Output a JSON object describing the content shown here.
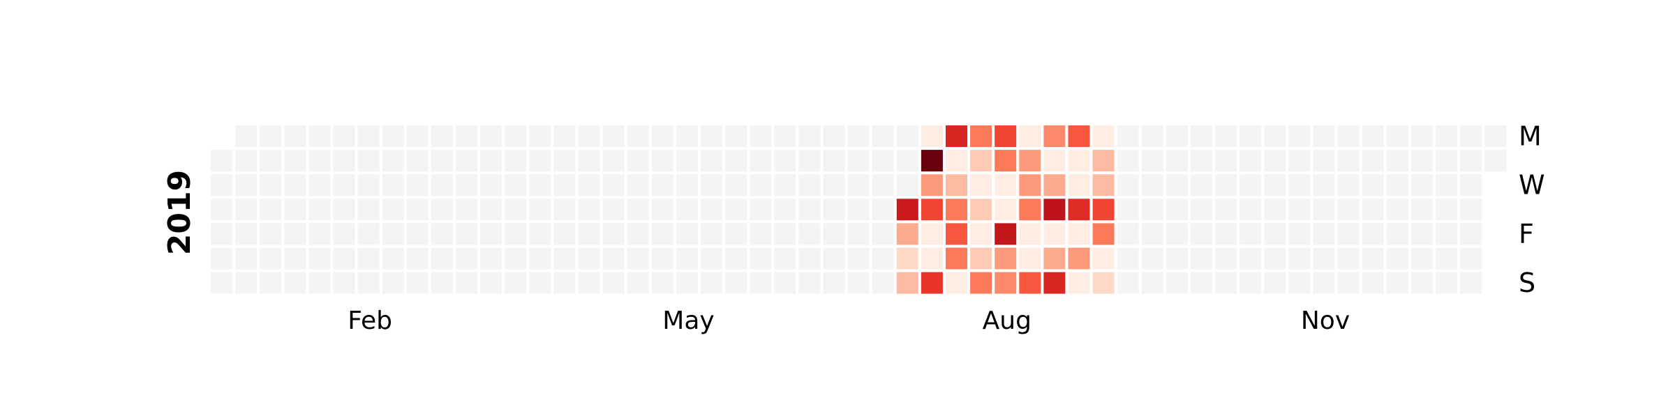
{
  "chart_data": {
    "type": "heatmap",
    "year": "2019",
    "title": "",
    "start_week": "2018-12-31",
    "weeks": 53,
    "day_labels": [
      "M",
      "",
      "W",
      "",
      "F",
      "",
      "S"
    ],
    "month_labels": [
      {
        "label": "Feb",
        "week": 6.5
      },
      {
        "label": "May",
        "week": 19.5
      },
      {
        "label": "Aug",
        "week": 32.5
      },
      {
        "label": "Nov",
        "week": 45.5
      }
    ],
    "empty_color": "#f4f4f4",
    "colormap": "Reds",
    "value_range": [
      0,
      1
    ],
    "data_weeks": [
      {
        "week": 28,
        "values": [
          null,
          null,
          null,
          0.75,
          0.3,
          0.15,
          0.25
        ]
      },
      {
        "week": 29,
        "values": [
          0.05,
          1.0,
          0.35,
          0.6,
          0.05,
          0.05,
          0.65
        ]
      },
      {
        "week": 30,
        "values": [
          0.7,
          0.05,
          0.25,
          0.45,
          0.55,
          0.45,
          0.05
        ]
      },
      {
        "week": 31,
        "values": [
          0.45,
          0.2,
          0.05,
          0.2,
          0.05,
          0.2,
          0.45
        ]
      },
      {
        "week": 32,
        "values": [
          0.6,
          0.45,
          0.05,
          0.05,
          0.78,
          0.35,
          0.4
        ]
      },
      {
        "week": 33,
        "values": [
          0.05,
          0.35,
          0.35,
          0.45,
          0.05,
          0.05,
          0.55
        ]
      },
      {
        "week": 34,
        "values": [
          0.4,
          0.05,
          0.3,
          0.8,
          0.05,
          0.3,
          0.7
        ]
      },
      {
        "week": 35,
        "values": [
          0.55,
          0.05,
          0.05,
          0.68,
          0.05,
          0.35,
          0.05
        ]
      },
      {
        "week": 36,
        "values": [
          0.05,
          0.25,
          0.25,
          0.6,
          0.45,
          0.05,
          0.15
        ]
      }
    ]
  }
}
